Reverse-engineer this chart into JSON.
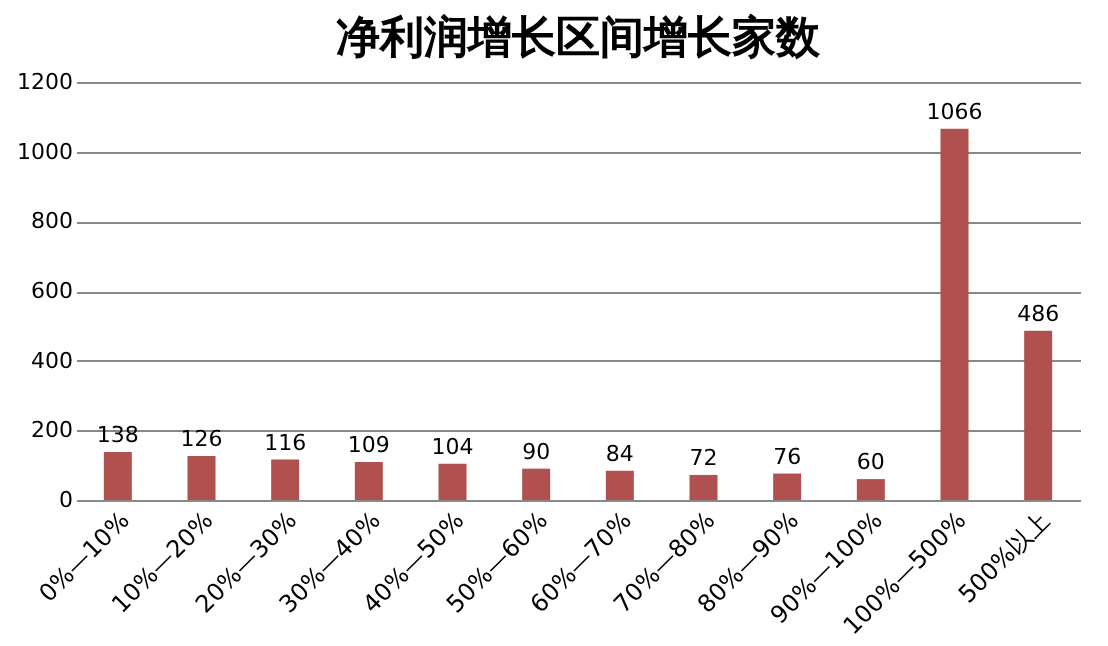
{
  "chart_data": {
    "type": "bar",
    "title": "净利润增长区间增长家数",
    "categories": [
      "0%—10%",
      "10%—20%",
      "20%—30%",
      "30%—40%",
      "40%—50%",
      "50%—60%",
      "60%—70%",
      "70%—80%",
      "80%—90%",
      "90%—100%",
      "100%—500%",
      "500%以上"
    ],
    "values": [
      138,
      126,
      116,
      109,
      104,
      90,
      84,
      72,
      76,
      60,
      1066,
      486
    ],
    "color": "#b0504f",
    "ylim": [
      0,
      1200
    ],
    "yticks": [
      0,
      200,
      400,
      600,
      800,
      1000,
      1200
    ],
    "grid": "y",
    "data_labels": true
  }
}
